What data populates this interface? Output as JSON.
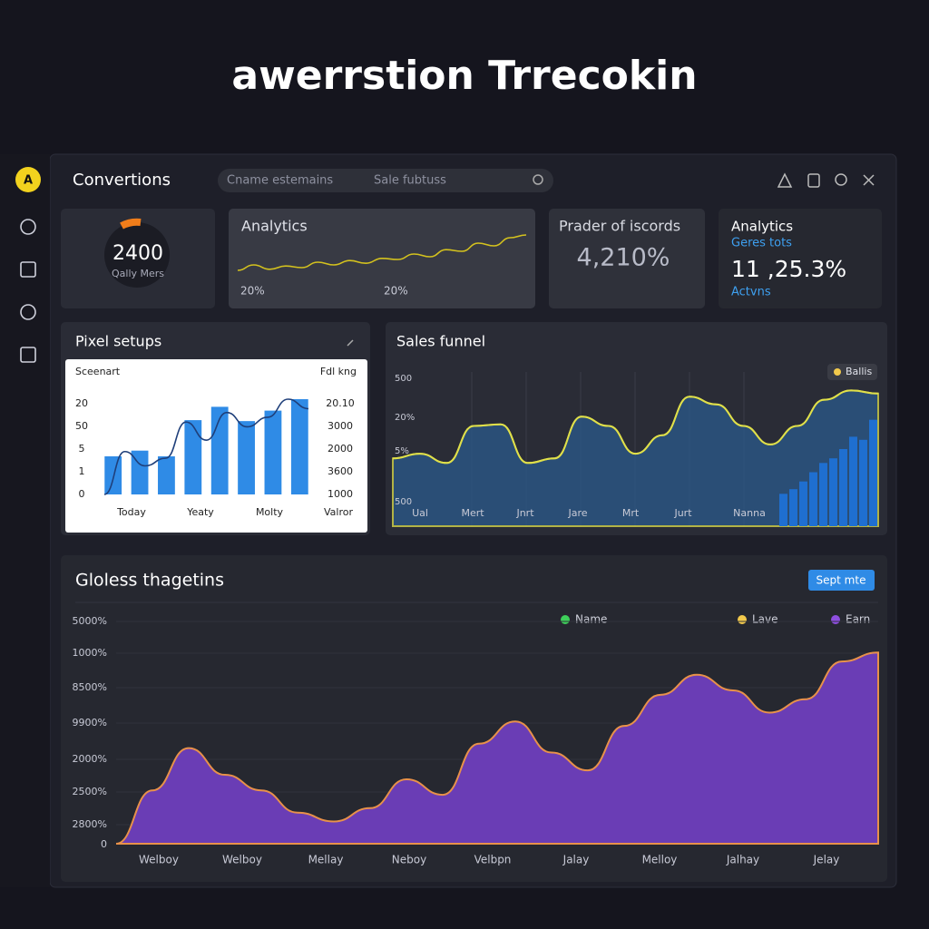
{
  "header": {
    "title": "awerrstion Trrecokin"
  },
  "sidebar": {
    "avatar": "A"
  },
  "toolbar": {
    "title": "Convertions",
    "search": [
      "Cname estemains",
      "Sale fubtuss"
    ]
  },
  "cards": [
    {
      "value": "2400",
      "label": "Qally Mers"
    },
    {
      "title": "Analytics",
      "labels": [
        "20%",
        "20%"
      ],
      "chart": {
        "type": "line",
        "color": "#d4c21e",
        "ylim": [
          0,
          100
        ],
        "values": [
          20,
          30,
          22,
          28,
          25,
          35,
          30,
          38,
          33,
          42,
          40,
          50,
          45,
          58,
          55,
          70,
          65,
          80,
          85
        ]
      }
    },
    {
      "title": "Prader of iscords",
      "value": "4,210%"
    },
    {
      "title": "Analytics",
      "subtitle": "Geres tots",
      "value": "11 ,25.3%",
      "label": "Actvns"
    }
  ],
  "pixel_setups": {
    "type": "bar",
    "title": "Pixel setups",
    "subtitle": "Sceenart",
    "right_title": "Fdl kng",
    "left_labels": [
      "20",
      "50",
      "5",
      "1",
      "0"
    ],
    "right_labels": [
      "20.10",
      "3000",
      "2000",
      "3600",
      "1000"
    ],
    "categories": [
      "Today",
      "Yeaty",
      "Molty",
      "Valror"
    ],
    "ylim": [
      0,
      100
    ],
    "bars": {
      "color": "#2f8be6",
      "values": [
        40,
        46,
        40,
        78,
        92,
        77,
        88,
        100
      ]
    },
    "line": {
      "color": "#1f3f7a",
      "values": [
        0,
        45,
        30,
        38,
        76,
        57,
        86,
        71,
        81,
        100,
        90
      ]
    }
  },
  "sales_funnel": {
    "type": "area",
    "title": "Sales funnel",
    "legend": {
      "name": "Ballis",
      "color": "#f2c94c"
    },
    "y_labels": [
      "500",
      "20%",
      "5%",
      "500"
    ],
    "x_labels": [
      "Ual",
      "Mert",
      "Jnrt",
      "Jare",
      "Mrt",
      "Jurt",
      "Nanna"
    ],
    "ylim": [
      0,
      100
    ],
    "line": {
      "color": "#e0e04a",
      "fill": "#2a5a8c",
      "values": [
        44,
        47,
        41,
        65,
        66,
        41,
        44,
        71,
        65,
        47,
        59,
        84,
        79,
        65,
        53,
        65,
        82,
        88,
        86
      ]
    },
    "bars": {
      "color": "#1f6fd0",
      "values": [
        21,
        24,
        29,
        35,
        41,
        44,
        50,
        58,
        56,
        69
      ]
    }
  },
  "goals": {
    "type": "area",
    "title": "Gloless thagetins",
    "button": "Sept mte",
    "legend": [
      {
        "name": "Name",
        "color": "#3ecf5a"
      },
      {
        "name": "Lave",
        "color": "#f2c94c"
      },
      {
        "name": "Earn",
        "color": "#8e4fe0"
      }
    ],
    "y_labels": [
      "5000%",
      "1000%",
      "8500%",
      "9900%",
      "2000%",
      "2500%",
      "2800%",
      "0"
    ],
    "x_labels": [
      "Welboy",
      "Welboy",
      "Mellay",
      "Neboy",
      "Velbpn",
      "Jalay",
      "Melloy",
      "Jalhay",
      "Jelay"
    ],
    "ylim": [
      0,
      100
    ],
    "series": {
      "fill": "#6a3db5",
      "stroke": "#e8914a",
      "values": [
        0,
        24,
        43,
        31,
        24,
        14,
        10,
        16,
        29,
        22,
        45,
        55,
        41,
        33,
        53,
        67,
        76,
        69,
        59,
        65,
        82,
        86
      ]
    }
  }
}
